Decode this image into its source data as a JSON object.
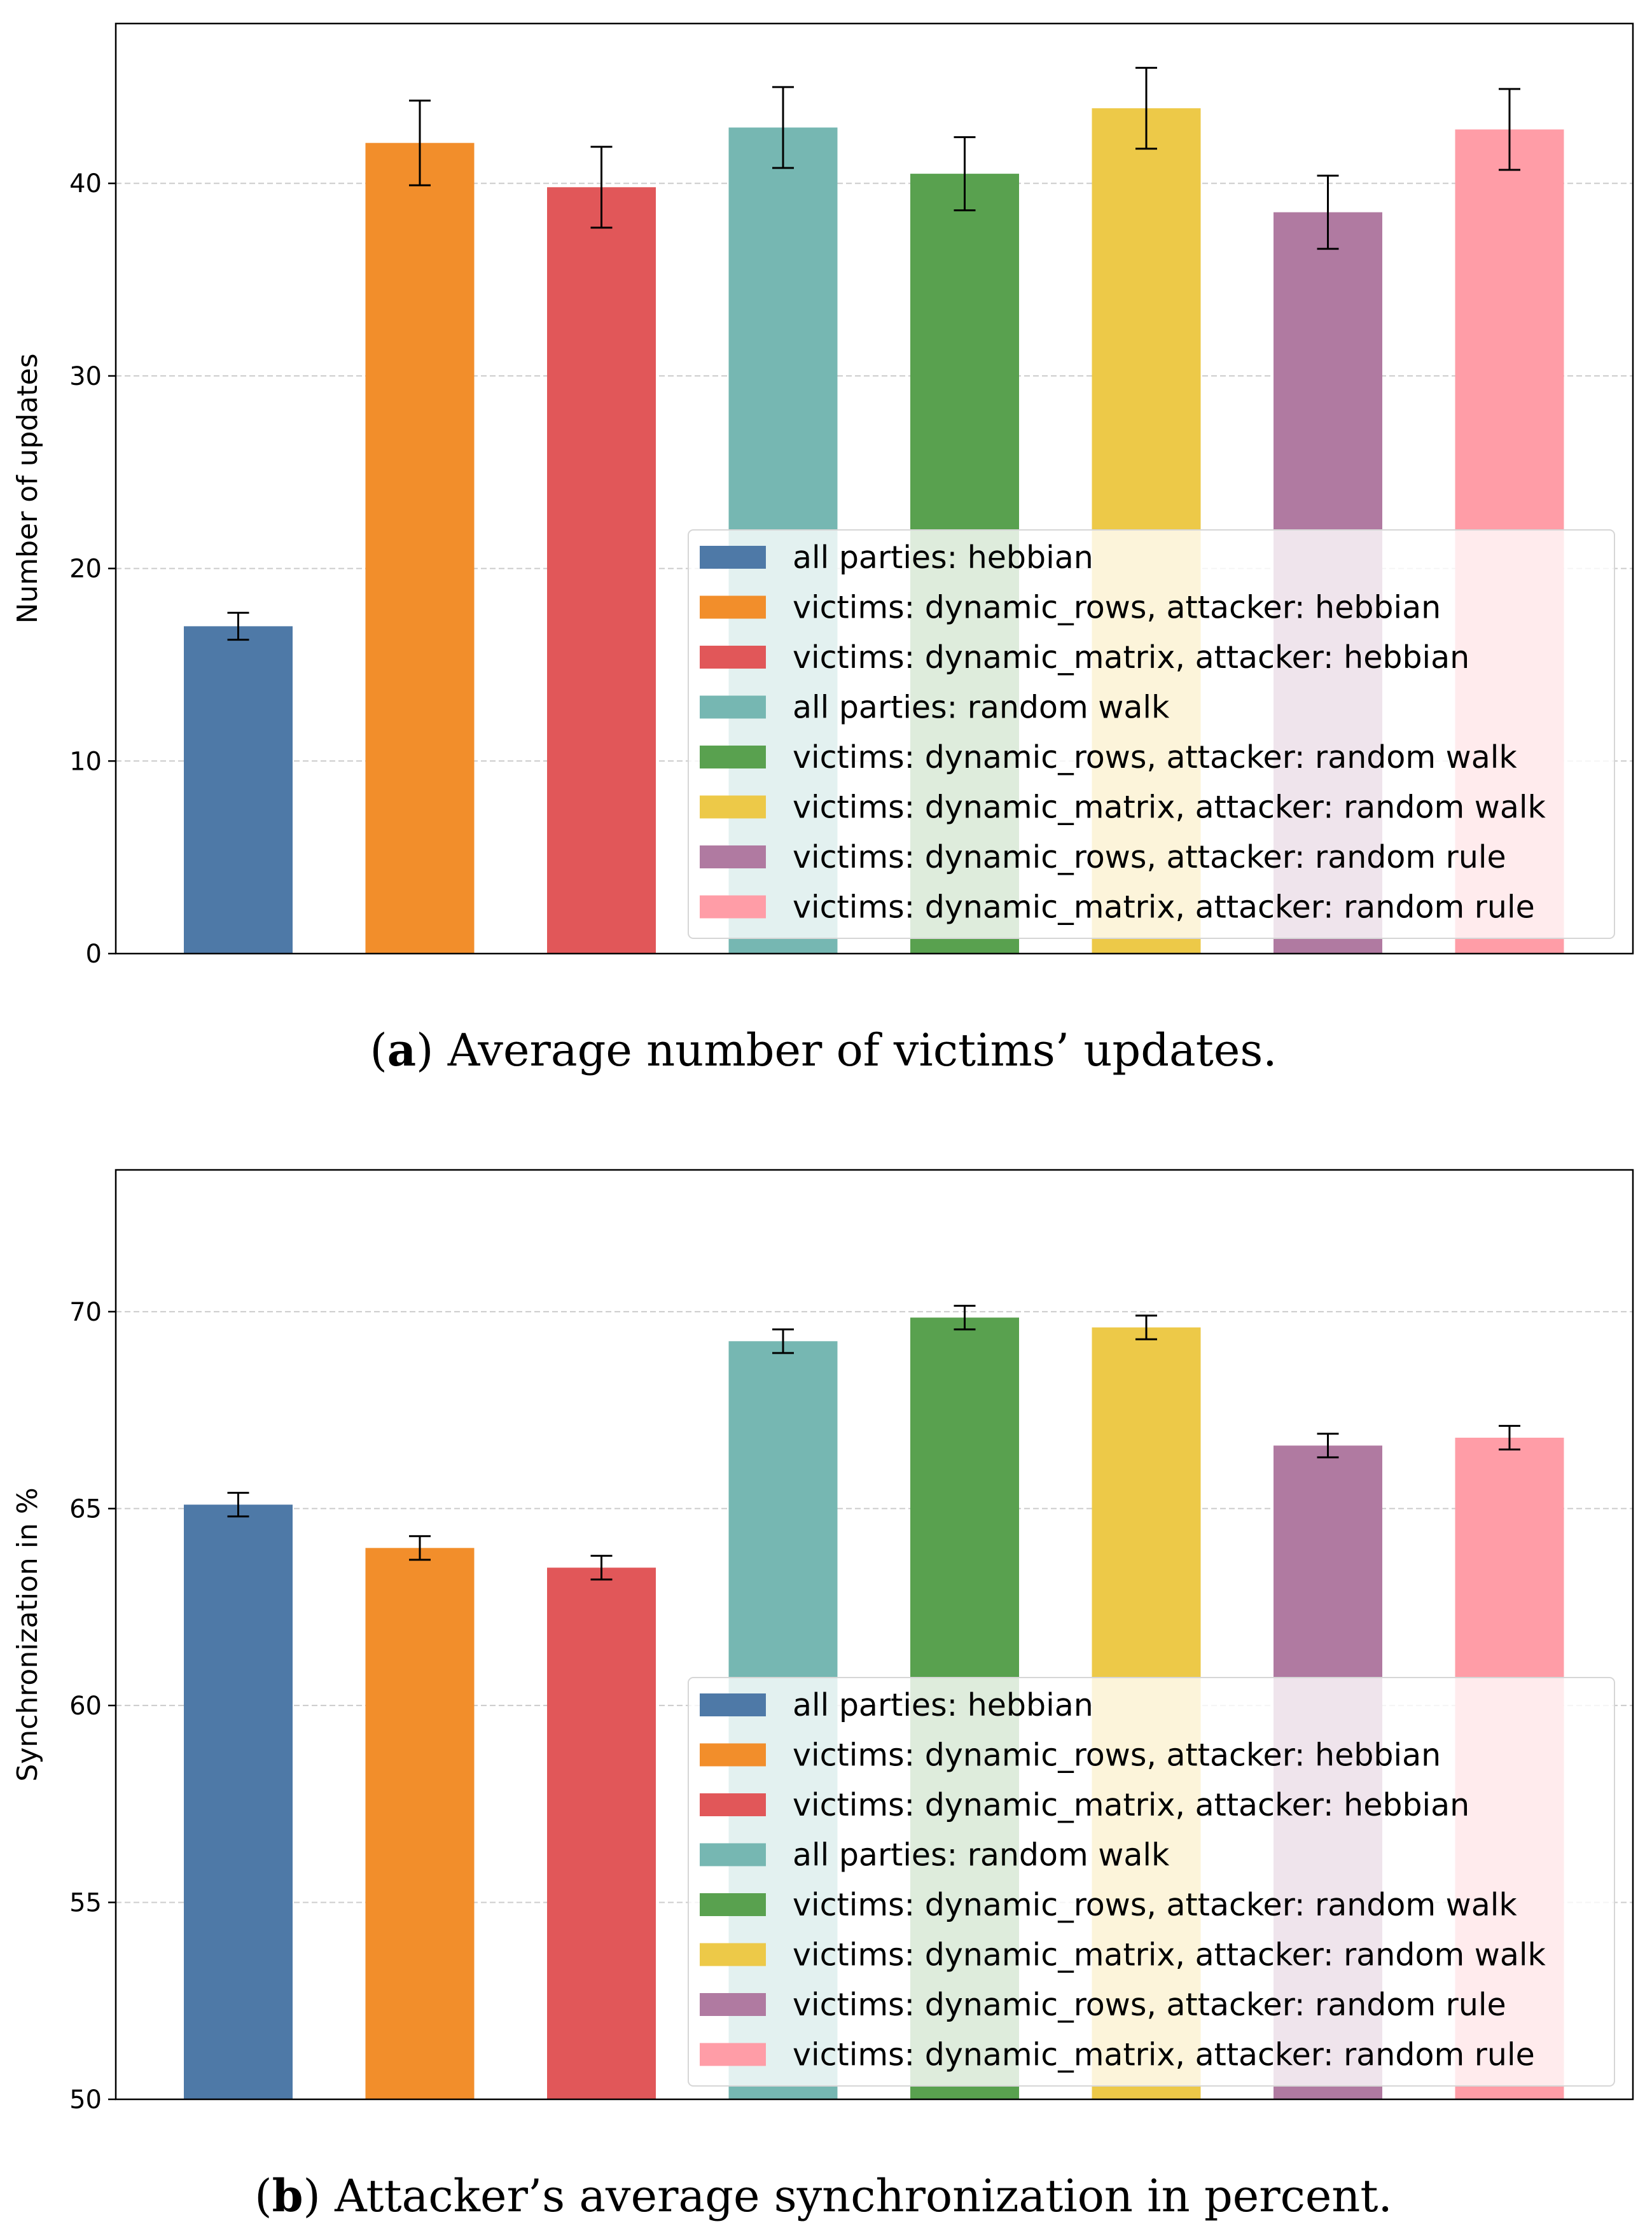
{
  "chart_data": [
    {
      "type": "bar",
      "ylabel": "Number of updates",
      "ylim": [
        0,
        48.3
      ],
      "yticks": [
        0,
        10,
        20,
        30,
        40
      ],
      "grid": "horizontal dashed",
      "legend_position": "lower-right",
      "caption": {
        "prefix": "(",
        "label": "a",
        "suffix": ")",
        "text": " Average number of victims’ updates."
      },
      "series": [
        {
          "name": "all parties: hebbian",
          "value": 17.0,
          "error": 0.7
        },
        {
          "name": "victims: dynamic_rows, attacker: hebbian",
          "value": 42.1,
          "error": 2.2
        },
        {
          "name": "victims: dynamic_matrix, attacker: hebbian",
          "value": 39.8,
          "error": 2.1
        },
        {
          "name": "all parties: random walk",
          "value": 42.9,
          "error": 2.1
        },
        {
          "name": "victims: dynamic_rows, attacker: random walk",
          "value": 40.5,
          "error": 1.9
        },
        {
          "name": "victims: dynamic_matrix, attacker: random walk",
          "value": 43.9,
          "error": 2.1
        },
        {
          "name": "victims: dynamic_rows, attacker: random rule",
          "value": 38.5,
          "error": 1.9
        },
        {
          "name": "victims: dynamic_matrix, attacker: random rule",
          "value": 42.8,
          "error": 2.1
        }
      ]
    },
    {
      "type": "bar",
      "ylabel": "Synchronization in %",
      "ylim": [
        50,
        73.6
      ],
      "yticks": [
        50,
        55,
        60,
        65,
        70
      ],
      "grid": "horizontal dashed",
      "legend_position": "lower-right",
      "caption": {
        "prefix": "(",
        "label": "b",
        "suffix": ")",
        "text": " Attacker’s average synchronization in percent."
      },
      "series": [
        {
          "name": "all parties: hebbian",
          "value": 65.1,
          "error": 0.3
        },
        {
          "name": "victims: dynamic_rows, attacker: hebbian",
          "value": 64.0,
          "error": 0.3
        },
        {
          "name": "victims: dynamic_matrix, attacker: hebbian",
          "value": 63.5,
          "error": 0.3
        },
        {
          "name": "all parties: random walk",
          "value": 69.25,
          "error": 0.3
        },
        {
          "name": "victims: dynamic_rows, attacker: random walk",
          "value": 69.85,
          "error": 0.3
        },
        {
          "name": "victims: dynamic_matrix, attacker: random walk",
          "value": 69.6,
          "error": 0.3
        },
        {
          "name": "victims: dynamic_rows, attacker: random rule",
          "value": 66.6,
          "error": 0.3
        },
        {
          "name": "victims: dynamic_matrix, attacker: random rule",
          "value": 66.8,
          "error": 0.3
        }
      ]
    }
  ],
  "colors": [
    "#4e79a7",
    "#f28e2b",
    "#e15759",
    "#76b7b2",
    "#59a14f",
    "#edc948",
    "#b07aa1",
    "#ff9da7"
  ]
}
